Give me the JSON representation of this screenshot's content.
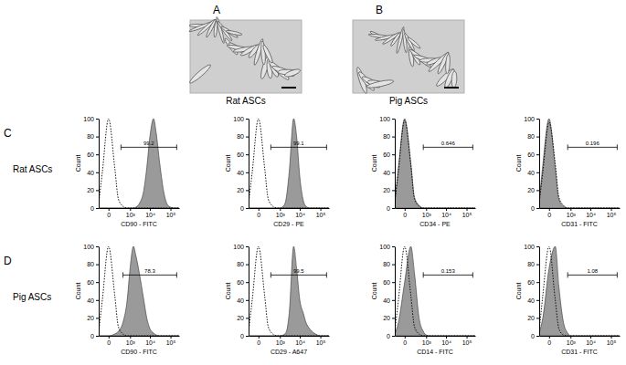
{
  "figure": {
    "panels": [
      {
        "label": "A",
        "caption": "Rat ASCs"
      },
      {
        "label": "B",
        "caption": "Pig ASCs"
      }
    ],
    "rows": [
      {
        "label": "C",
        "name": "Rat ASCs"
      },
      {
        "label": "D",
        "name": "Pig ASCs"
      }
    ]
  },
  "chart_data": [
    {
      "type": "area",
      "x_label": "CD90 - FITC",
      "y_label": "Count",
      "log": "x",
      "x": [
        -200,
        -100,
        0,
        100,
        200,
        400,
        700,
        1000,
        1500,
        2000,
        3000,
        5000,
        7000,
        10000,
        15000,
        20000,
        30000,
        50000,
        70000,
        100000,
        150000,
        262144
      ],
      "xlim": [
        -200,
        262144
      ],
      "xticks": [
        0,
        {
          "value": 1000,
          "label": "10³"
        },
        {
          "value": 10000,
          "label": "10⁴"
        },
        {
          "value": 100000,
          "label": "10⁵"
        }
      ],
      "ylim": [
        0,
        100
      ],
      "yticks": [
        0,
        20,
        40,
        60,
        80,
        100
      ],
      "series": [
        {
          "type": "area",
          "color": "#9a9a9a",
          "values": [
            0,
            0,
            0,
            0,
            0,
            0,
            0,
            0,
            0,
            1,
            5,
            20,
            45,
            80,
            100,
            85,
            50,
            15,
            4,
            1,
            0,
            0
          ]
        },
        {
          "type": "line",
          "color": "#000000",
          "line_style": "dotted",
          "values": [
            5,
            40,
            100,
            45,
            10,
            2,
            0,
            0,
            0,
            0,
            0,
            0,
            0,
            0,
            0,
            0,
            0,
            0,
            0,
            0,
            0,
            0
          ]
        }
      ],
      "gate": [
        300,
        200000
      ],
      "gate_value": 99.2
    },
    {
      "type": "area",
      "x_label": "CD29 - PE",
      "y_label": "Count",
      "log": "x",
      "x": [
        -200,
        -100,
        0,
        100,
        200,
        400,
        700,
        1000,
        1500,
        2000,
        3000,
        5000,
        7000,
        10000,
        15000,
        20000,
        30000,
        50000,
        70000,
        100000,
        150000,
        262144
      ],
      "xlim": [
        -200,
        262144
      ],
      "xticks": [
        0,
        {
          "value": 1000,
          "label": "10³"
        },
        {
          "value": 10000,
          "label": "10⁴"
        },
        {
          "value": 100000,
          "label": "10⁵"
        }
      ],
      "ylim": [
        0,
        100
      ],
      "yticks": [
        0,
        20,
        40,
        60,
        80,
        100
      ],
      "series": [
        {
          "type": "area",
          "color": "#9a9a9a",
          "values": [
            0,
            0,
            0,
            0,
            0,
            0,
            0,
            0,
            2,
            8,
            40,
            100,
            80,
            35,
            8,
            2,
            0,
            0,
            0,
            0,
            0,
            0
          ]
        },
        {
          "type": "line",
          "color": "#000000",
          "line_style": "dotted",
          "values": [
            5,
            40,
            100,
            45,
            10,
            2,
            0,
            0,
            0,
            0,
            0,
            0,
            0,
            0,
            0,
            0,
            0,
            0,
            0,
            0,
            0,
            0
          ]
        }
      ],
      "gate": [
        300,
        200000
      ],
      "gate_value": 99.1
    },
    {
      "type": "area",
      "x_label": "CD34 - PE",
      "y_label": "Count",
      "log": "x",
      "x": [
        -200,
        -100,
        0,
        100,
        200,
        400,
        700,
        1000,
        1500,
        2000,
        3000,
        5000,
        7000,
        10000,
        15000,
        20000,
        30000,
        50000,
        70000,
        100000,
        150000,
        262144
      ],
      "xlim": [
        -200,
        262144
      ],
      "xticks": [
        0,
        {
          "value": 1000,
          "label": "10³"
        },
        {
          "value": 10000,
          "label": "10⁴"
        },
        {
          "value": 100000,
          "label": "10⁵"
        }
      ],
      "ylim": [
        0,
        100
      ],
      "yticks": [
        0,
        20,
        40,
        60,
        80,
        100
      ],
      "series": [
        {
          "type": "area",
          "color": "#9a9a9a",
          "values": [
            8,
            45,
            100,
            50,
            12,
            3,
            0,
            0,
            0,
            0,
            0,
            0,
            0,
            0,
            0,
            0,
            0,
            0,
            0,
            0,
            0,
            0
          ]
        },
        {
          "type": "line",
          "color": "#000000",
          "line_style": "dotted",
          "values": [
            6,
            42,
            98,
            48,
            10,
            2,
            0,
            0,
            0,
            0,
            0,
            0,
            0,
            0,
            0,
            0,
            0,
            0,
            0,
            0,
            0,
            0
          ]
        }
      ],
      "gate": [
        700,
        200000
      ],
      "gate_value": 0.646
    },
    {
      "type": "area",
      "x_label": "CD31 - FITC",
      "y_label": "Count",
      "log": "x",
      "x": [
        -200,
        -100,
        0,
        100,
        200,
        400,
        700,
        1000,
        1500,
        2000,
        3000,
        5000,
        7000,
        10000,
        15000,
        20000,
        30000,
        50000,
        70000,
        100000,
        150000,
        262144
      ],
      "xlim": [
        -200,
        262144
      ],
      "xticks": [
        0,
        {
          "value": 1000,
          "label": "10³"
        },
        {
          "value": 10000,
          "label": "10⁴"
        },
        {
          "value": 100000,
          "label": "10⁵"
        }
      ],
      "ylim": [
        0,
        100
      ],
      "yticks": [
        0,
        20,
        40,
        60,
        80,
        100
      ],
      "series": [
        {
          "type": "area",
          "color": "#9a9a9a",
          "values": [
            7,
            48,
            100,
            45,
            10,
            2,
            0,
            0,
            0,
            0,
            0,
            0,
            0,
            0,
            0,
            0,
            0,
            0,
            0,
            0,
            0,
            0
          ]
        },
        {
          "type": "line",
          "color": "#000000",
          "line_style": "dotted",
          "values": [
            5,
            40,
            96,
            50,
            12,
            3,
            0,
            0,
            0,
            0,
            0,
            0,
            0,
            0,
            0,
            0,
            0,
            0,
            0,
            0,
            0,
            0
          ]
        }
      ],
      "gate": [
        700,
        200000
      ],
      "gate_value": 0.196
    },
    {
      "type": "area",
      "x_label": "CD90 - FITC",
      "y_label": "Count",
      "log": "x",
      "x": [
        -200,
        -100,
        0,
        100,
        200,
        400,
        700,
        1000,
        1500,
        2000,
        3000,
        5000,
        7000,
        10000,
        15000,
        20000,
        30000,
        50000,
        70000,
        100000,
        150000,
        262144
      ],
      "xlim": [
        -200,
        262144
      ],
      "xticks": [
        0,
        {
          "value": 1000,
          "label": "10³"
        },
        {
          "value": 10000,
          "label": "10⁴"
        },
        {
          "value": 100000,
          "label": "10⁵"
        }
      ],
      "ylim": [
        0,
        100
      ],
      "yticks": [
        0,
        20,
        40,
        60,
        80,
        100
      ],
      "series": [
        {
          "type": "area",
          "color": "#9a9a9a",
          "values": [
            0,
            0,
            0,
            2,
            5,
            15,
            40,
            75,
            100,
            90,
            70,
            40,
            20,
            8,
            3,
            1,
            0,
            0,
            0,
            0,
            0,
            0
          ]
        },
        {
          "type": "line",
          "color": "#000000",
          "line_style": "dotted",
          "values": [
            5,
            40,
            100,
            45,
            10,
            2,
            0,
            0,
            0,
            0,
            0,
            0,
            0,
            0,
            0,
            0,
            0,
            0,
            0,
            0,
            0,
            0
          ]
        }
      ],
      "gate": [
        400,
        200000
      ],
      "gate_value": 78.3
    },
    {
      "type": "area",
      "x_label": "CD29 - A647",
      "y_label": "Count",
      "log": "x",
      "x": [
        -200,
        -100,
        0,
        100,
        200,
        400,
        700,
        1000,
        1500,
        2000,
        3000,
        5000,
        7000,
        10000,
        15000,
        20000,
        30000,
        50000,
        70000,
        100000,
        150000,
        262144
      ],
      "xlim": [
        -200,
        262144
      ],
      "xticks": [
        0,
        {
          "value": 1000,
          "label": "10³"
        },
        {
          "value": 10000,
          "label": "10⁴"
        },
        {
          "value": 100000,
          "label": "10⁵"
        }
      ],
      "ylim": [
        0,
        100
      ],
      "yticks": [
        0,
        20,
        40,
        60,
        80,
        100
      ],
      "series": [
        {
          "type": "area",
          "color": "#9a9a9a",
          "values": [
            0,
            0,
            0,
            0,
            0,
            0,
            0,
            0,
            1,
            3,
            25,
            100,
            75,
            40,
            25,
            15,
            8,
            3,
            1,
            0,
            0,
            0
          ]
        },
        {
          "type": "line",
          "color": "#000000",
          "line_style": "dotted",
          "values": [
            5,
            40,
            100,
            45,
            10,
            2,
            0,
            0,
            0,
            0,
            0,
            0,
            0,
            0,
            0,
            0,
            0,
            0,
            0,
            0,
            0,
            0
          ]
        }
      ],
      "gate": [
        300,
        200000
      ],
      "gate_value": 99.5
    },
    {
      "type": "area",
      "x_label": "CD14 - FITC",
      "y_label": "Count",
      "log": "x",
      "x": [
        -200,
        -100,
        0,
        100,
        200,
        400,
        700,
        1000,
        1500,
        2000,
        3000,
        5000,
        7000,
        10000,
        15000,
        20000,
        30000,
        50000,
        70000,
        100000,
        150000,
        262144
      ],
      "xlim": [
        -200,
        262144
      ],
      "xticks": [
        0,
        {
          "value": 1000,
          "label": "10³"
        },
        {
          "value": 10000,
          "label": "10⁴"
        },
        {
          "value": 100000,
          "label": "10⁵"
        }
      ],
      "ylim": [
        0,
        100
      ],
      "yticks": [
        0,
        20,
        40,
        60,
        80,
        100
      ],
      "series": [
        {
          "type": "area",
          "color": "#9a9a9a",
          "values": [
            2,
            15,
            60,
            100,
            70,
            20,
            5,
            1,
            0,
            0,
            0,
            0,
            0,
            0,
            0,
            0,
            0,
            0,
            0,
            0,
            0,
            0
          ]
        },
        {
          "type": "line",
          "color": "#000000",
          "line_style": "dotted",
          "values": [
            5,
            40,
            100,
            45,
            10,
            2,
            0,
            0,
            0,
            0,
            0,
            0,
            0,
            0,
            0,
            0,
            0,
            0,
            0,
            0,
            0,
            0
          ]
        }
      ],
      "gate": [
        700,
        200000
      ],
      "gate_value": 0.153
    },
    {
      "type": "area",
      "x_label": "CD31 - FITC",
      "y_label": "Count",
      "log": "x",
      "x": [
        -200,
        -100,
        0,
        100,
        200,
        400,
        700,
        1000,
        1500,
        2000,
        3000,
        5000,
        7000,
        10000,
        15000,
        20000,
        30000,
        50000,
        70000,
        100000,
        150000,
        262144
      ],
      "xlim": [
        -200,
        262144
      ],
      "xticks": [
        0,
        {
          "value": 1000,
          "label": "10³"
        },
        {
          "value": 10000,
          "label": "10⁴"
        },
        {
          "value": 100000,
          "label": "10⁵"
        }
      ],
      "ylim": [
        0,
        100
      ],
      "yticks": [
        0,
        20,
        40,
        60,
        80,
        100
      ],
      "series": [
        {
          "type": "area",
          "color": "#9a9a9a",
          "values": [
            3,
            20,
            75,
            100,
            55,
            15,
            3,
            0,
            0,
            0,
            0,
            0,
            0,
            0,
            0,
            0,
            0,
            0,
            0,
            0,
            0,
            0
          ]
        },
        {
          "type": "line",
          "color": "#000000",
          "line_style": "dotted",
          "values": [
            5,
            45,
            100,
            40,
            8,
            1,
            0,
            0,
            0,
            0,
            0,
            0,
            0,
            0,
            0,
            0,
            0,
            0,
            0,
            0,
            0,
            0
          ]
        }
      ],
      "gate": [
        700,
        200000
      ],
      "gate_value": 1.08
    }
  ]
}
